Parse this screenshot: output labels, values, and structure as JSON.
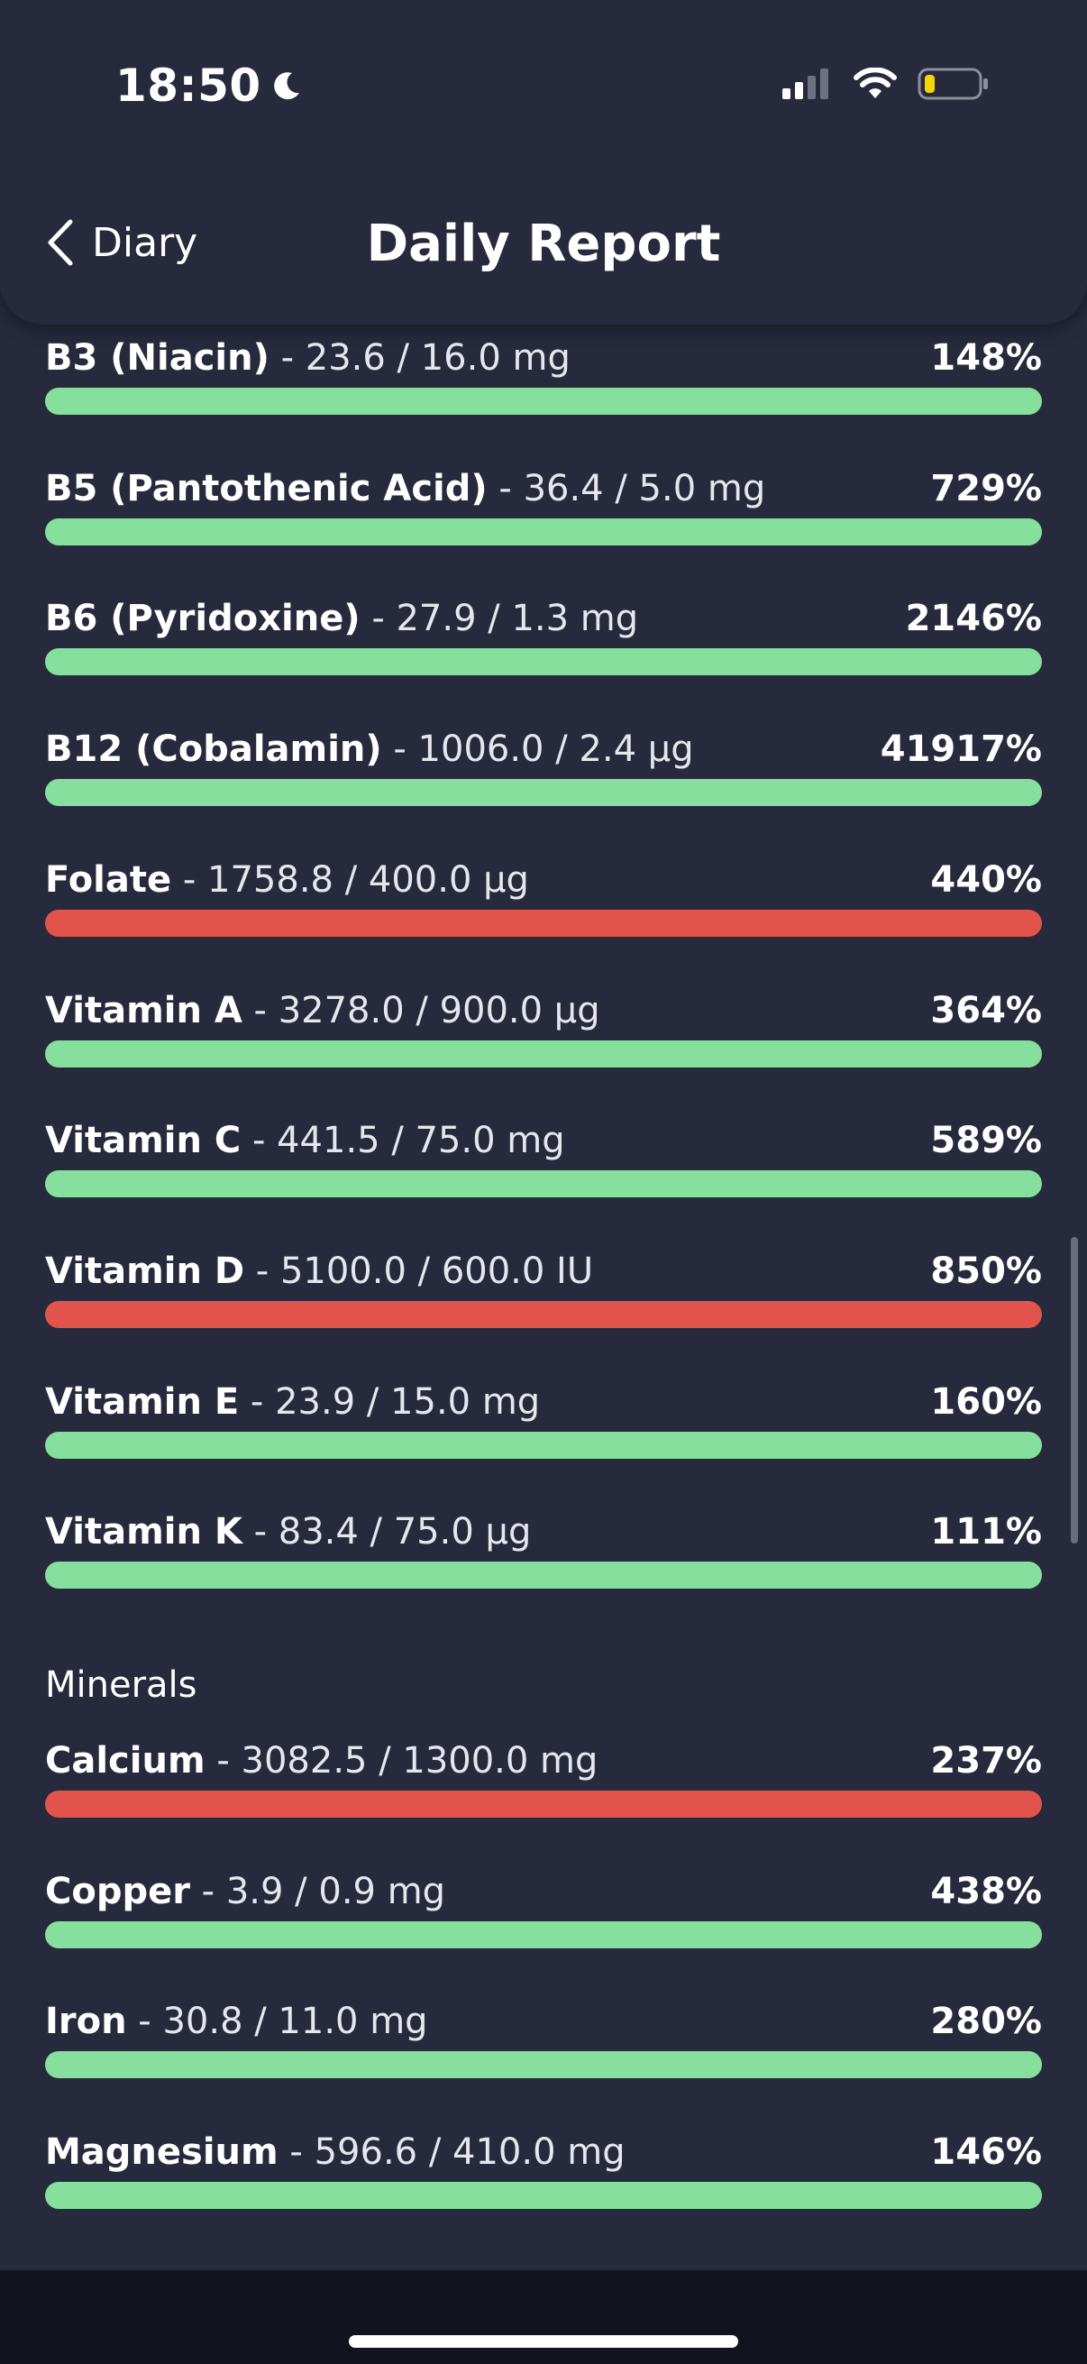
{
  "status_bar": {
    "time": "18:50"
  },
  "header": {
    "back_label": "Diary",
    "title": "Daily Report"
  },
  "colors": {
    "ok": "#86df9d",
    "over": "#e2544b",
    "background": "#272a3c"
  },
  "vitamins": [
    {
      "name": "B3 (Niacin)",
      "amount": "23.6 / 16.0 mg",
      "percent": "148%",
      "status": "ok"
    },
    {
      "name": "B5 (Pantothenic Acid)",
      "amount": "36.4 / 5.0 mg",
      "percent": "729%",
      "status": "ok"
    },
    {
      "name": "B6 (Pyridoxine)",
      "amount": "27.9 / 1.3 mg",
      "percent": "2146%",
      "status": "ok"
    },
    {
      "name": "B12 (Cobalamin)",
      "amount": "1006.0 / 2.4 µg",
      "percent": "41917%",
      "status": "ok"
    },
    {
      "name": "Folate",
      "amount": "1758.8 / 400.0 µg",
      "percent": "440%",
      "status": "over"
    },
    {
      "name": "Vitamin A",
      "amount": "3278.0 / 900.0 µg",
      "percent": "364%",
      "status": "ok"
    },
    {
      "name": "Vitamin C",
      "amount": "441.5 / 75.0 mg",
      "percent": "589%",
      "status": "ok"
    },
    {
      "name": "Vitamin D",
      "amount": "5100.0 / 600.0 IU",
      "percent": "850%",
      "status": "over"
    },
    {
      "name": "Vitamin E",
      "amount": "23.9 / 15.0 mg",
      "percent": "160%",
      "status": "ok"
    },
    {
      "name": "Vitamin K",
      "amount": "83.4 / 75.0 µg",
      "percent": "111%",
      "status": "ok"
    }
  ],
  "minerals_heading": "Minerals",
  "minerals": [
    {
      "name": "Calcium",
      "amount": "3082.5 / 1300.0 mg",
      "percent": "237%",
      "status": "over"
    },
    {
      "name": "Copper",
      "amount": "3.9 / 0.9 mg",
      "percent": "438%",
      "status": "ok"
    },
    {
      "name": "Iron",
      "amount": "30.8 / 11.0 mg",
      "percent": "280%",
      "status": "ok"
    },
    {
      "name": "Magnesium",
      "amount": "596.6 / 410.0 mg",
      "percent": "146%",
      "status": "ok"
    }
  ]
}
